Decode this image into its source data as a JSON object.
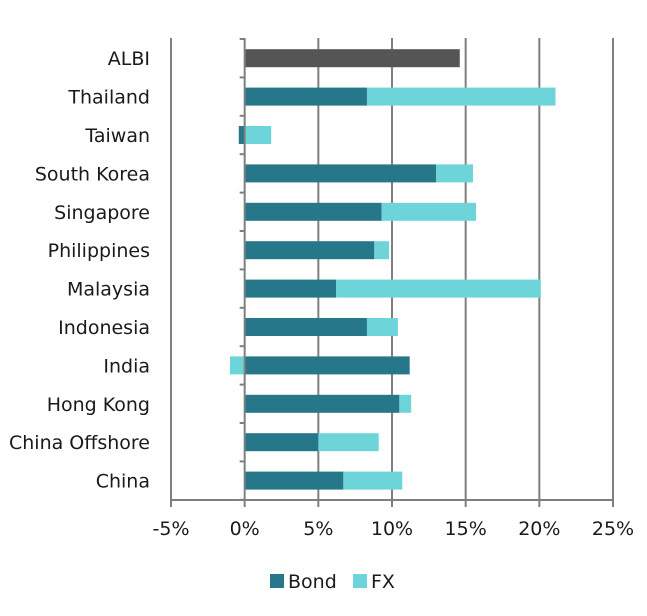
{
  "chart_data": {
    "type": "bar",
    "orientation": "horizontal",
    "stacked": true,
    "title": "",
    "xlabel": "",
    "ylabel": "",
    "categories": [
      "ALBI",
      "Thailand",
      "Taiwan",
      "South Korea",
      "Singapore",
      "Philippines",
      "Malaysia",
      "Indonesia",
      "India",
      "Hong Kong",
      "China Offshore",
      "China"
    ],
    "xlim": [
      -5,
      25
    ],
    "x_ticks": [
      -5,
      0,
      5,
      10,
      15,
      20,
      25
    ],
    "x_tick_labels": [
      "-5%",
      "0%",
      "5%",
      "10%",
      "15%",
      "20%",
      "25%"
    ],
    "total": {
      "color": "#555555",
      "values": [
        14.6,
        null,
        null,
        null,
        null,
        null,
        null,
        null,
        null,
        null,
        null,
        null
      ]
    },
    "series": [
      {
        "name": "Bond",
        "color": "#26778a",
        "values": [
          null,
          8.3,
          -0.4,
          13.0,
          9.3,
          8.8,
          6.2,
          8.3,
          11.2,
          10.5,
          5.0,
          6.7
        ]
      },
      {
        "name": "FX",
        "color": "#6dd5d9",
        "values": [
          null,
          12.8,
          1.8,
          2.5,
          6.4,
          1.0,
          13.9,
          2.1,
          -1.0,
          0.8,
          4.1,
          4.0
        ]
      }
    ],
    "grid": "vertical",
    "legend_position": "bottom"
  }
}
